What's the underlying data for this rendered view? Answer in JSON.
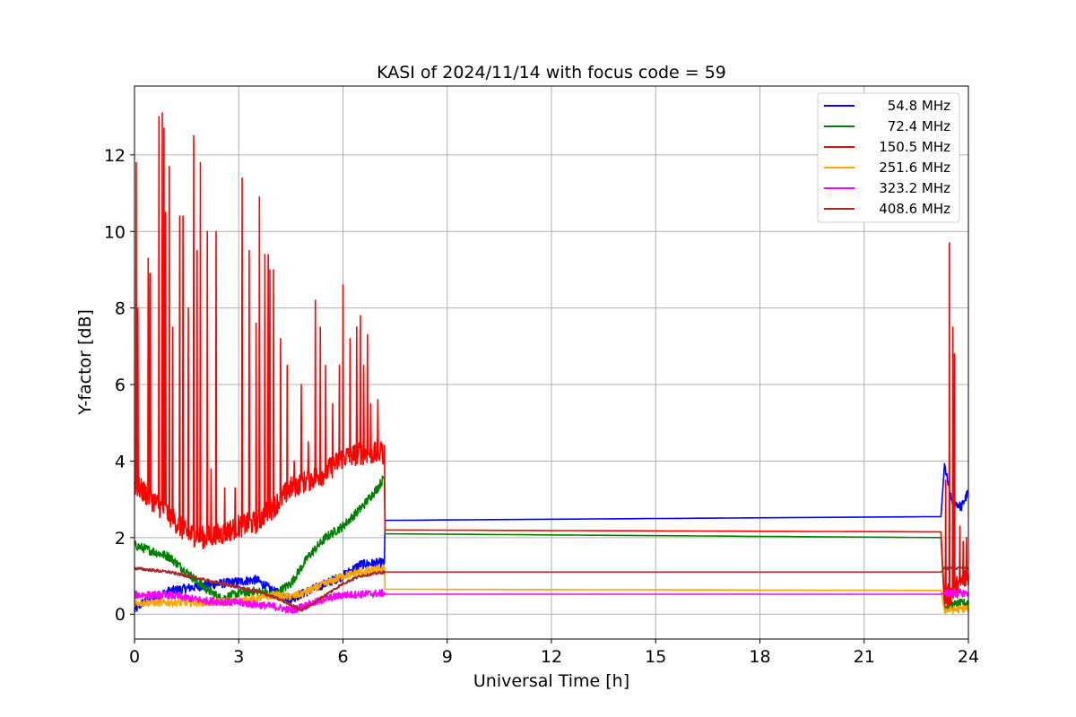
{
  "chart_data": {
    "type": "line",
    "title": "KASI of 2024/11/14 with focus code = 59",
    "xlabel": "Universal Time [h]",
    "ylabel": "Y-factor [dB]",
    "xlim": [
      0,
      24
    ],
    "ylim": [
      -0.65,
      13.8
    ],
    "xticks": [
      0,
      3,
      6,
      9,
      12,
      15,
      18,
      21,
      24
    ],
    "yticks": [
      0,
      2,
      4,
      6,
      8,
      10,
      12
    ],
    "grid": true,
    "legend_position": "top-right",
    "series": [
      {
        "name": "54.8 MHz",
        "color": "#0000ff",
        "noise": 0.12,
        "points": [
          [
            0,
            0.1
          ],
          [
            0.3,
            0.35
          ],
          [
            1,
            0.6
          ],
          [
            2,
            0.75
          ],
          [
            3,
            0.85
          ],
          [
            3.5,
            0.9
          ],
          [
            4,
            0.6
          ],
          [
            4.5,
            0.4
          ],
          [
            5,
            0.6
          ],
          [
            5.5,
            0.8
          ],
          [
            6,
            1.0
          ],
          [
            6.5,
            1.3
          ],
          [
            7.2,
            1.35
          ],
          [
            7.21,
            2.45
          ],
          [
            23.3,
            2.55
          ],
          [
            23.31,
            3.9
          ],
          [
            23.5,
            3.0
          ],
          [
            23.8,
            2.8
          ],
          [
            24,
            3.2
          ]
        ]
      },
      {
        "name": "72.4 MHz",
        "color": "#008000",
        "noise": 0.12,
        "points": [
          [
            0,
            1.8
          ],
          [
            1,
            1.5
          ],
          [
            1.5,
            1.1
          ],
          [
            2,
            0.7
          ],
          [
            2.5,
            0.4
          ],
          [
            3,
            0.55
          ],
          [
            3.5,
            0.6
          ],
          [
            4,
            0.5
          ],
          [
            4.5,
            0.8
          ],
          [
            5,
            1.5
          ],
          [
            5.5,
            2.0
          ],
          [
            6,
            2.3
          ],
          [
            6.5,
            2.75
          ],
          [
            7,
            3.3
          ],
          [
            7.2,
            3.6
          ],
          [
            7.21,
            2.1
          ],
          [
            23.3,
            2.0
          ],
          [
            23.31,
            0.2
          ],
          [
            24,
            0.3
          ]
        ]
      },
      {
        "name": "150.5 MHz",
        "color": "#ff0000",
        "noise": 0.3,
        "points": [
          [
            0,
            3.4
          ],
          [
            0.5,
            3.0
          ],
          [
            1,
            2.6
          ],
          [
            1.5,
            2.1
          ],
          [
            2,
            2.0
          ],
          [
            2.5,
            2.1
          ],
          [
            3,
            2.3
          ],
          [
            3.5,
            2.4
          ],
          [
            4,
            2.8
          ],
          [
            4.5,
            3.3
          ],
          [
            5,
            3.5
          ],
          [
            5.5,
            3.7
          ],
          [
            6,
            4.1
          ],
          [
            6.5,
            4.2
          ],
          [
            7.2,
            4.2
          ],
          [
            7.21,
            2.2
          ],
          [
            23.3,
            2.15
          ],
          [
            23.31,
            0.4
          ],
          [
            24,
            1.0
          ]
        ],
        "spikes": [
          [
            0.05,
            11.8
          ],
          [
            0.1,
            8.0
          ],
          [
            0.4,
            9.3
          ],
          [
            0.45,
            8.9
          ],
          [
            0.7,
            13.0
          ],
          [
            0.8,
            13.1
          ],
          [
            0.85,
            12.7
          ],
          [
            0.9,
            10.5
          ],
          [
            1,
            11.7
          ],
          [
            1.1,
            7.5
          ],
          [
            1.3,
            10.4
          ],
          [
            1.4,
            10.4
          ],
          [
            1.55,
            8.0
          ],
          [
            1.7,
            12.5
          ],
          [
            1.8,
            9.5
          ],
          [
            1.9,
            11.8
          ],
          [
            2.1,
            10.0
          ],
          [
            2.2,
            3.8
          ],
          [
            2.35,
            10.0
          ],
          [
            2.6,
            3.3
          ],
          [
            2.9,
            3.3
          ],
          [
            3.1,
            11.4
          ],
          [
            3.3,
            9.5
          ],
          [
            3.5,
            7.6
          ],
          [
            3.6,
            10.9
          ],
          [
            3.75,
            9.4
          ],
          [
            3.85,
            9.4
          ],
          [
            3.9,
            9.0
          ],
          [
            4,
            9.0
          ],
          [
            4.2,
            7.2
          ],
          [
            4.4,
            6.5
          ],
          [
            4.6,
            4.0
          ],
          [
            4.8,
            6.0
          ],
          [
            5,
            4.5
          ],
          [
            5.2,
            8.2
          ],
          [
            5.35,
            7.5
          ],
          [
            5.5,
            6.5
          ],
          [
            5.7,
            5.5
          ],
          [
            5.9,
            6.5
          ],
          [
            6,
            8.6
          ],
          [
            6.2,
            7.2
          ],
          [
            6.4,
            7.5
          ],
          [
            6.5,
            7.8
          ],
          [
            6.6,
            6.5
          ],
          [
            6.7,
            7.3
          ],
          [
            6.8,
            5.5
          ],
          [
            7.0,
            5.6
          ],
          [
            7.1,
            4.5
          ],
          [
            23.35,
            3.5
          ],
          [
            23.45,
            9.7
          ],
          [
            23.55,
            7.5
          ],
          [
            23.6,
            6.8
          ],
          [
            23.75,
            2.3
          ],
          [
            23.85,
            1.9
          ],
          [
            23.95,
            2.0
          ]
        ]
      },
      {
        "name": "251.6 MHz",
        "color": "#ffa500",
        "noise": 0.1,
        "points": [
          [
            0,
            0.3
          ],
          [
            1,
            0.3
          ],
          [
            2,
            0.3
          ],
          [
            3,
            0.35
          ],
          [
            3.5,
            0.4
          ],
          [
            4,
            0.5
          ],
          [
            4.5,
            0.45
          ],
          [
            5,
            0.6
          ],
          [
            5.5,
            0.8
          ],
          [
            6,
            1.0
          ],
          [
            6.5,
            1.1
          ],
          [
            7.2,
            1.2
          ],
          [
            7.21,
            0.65
          ],
          [
            23.3,
            0.62
          ],
          [
            23.31,
            0.1
          ],
          [
            24,
            0.15
          ]
        ]
      },
      {
        "name": "323.2 MHz",
        "color": "#ff00ff",
        "noise": 0.1,
        "points": [
          [
            0,
            0.5
          ],
          [
            1,
            0.5
          ],
          [
            2,
            0.35
          ],
          [
            3,
            0.3
          ],
          [
            4,
            0.2
          ],
          [
            4.5,
            0.1
          ],
          [
            5,
            0.25
          ],
          [
            5.5,
            0.4
          ],
          [
            6,
            0.5
          ],
          [
            7.2,
            0.55
          ],
          [
            7.21,
            0.52
          ],
          [
            23.3,
            0.52
          ],
          [
            23.31,
            0.55
          ],
          [
            24,
            0.55
          ]
        ]
      },
      {
        "name": "408.6 MHz",
        "color": "#a52a2a",
        "noise": 0.04,
        "points": [
          [
            0,
            1.2
          ],
          [
            0.5,
            1.15
          ],
          [
            1,
            1.1
          ],
          [
            1.5,
            1.0
          ],
          [
            2,
            0.9
          ],
          [
            2.5,
            0.8
          ],
          [
            3,
            0.7
          ],
          [
            3.5,
            0.6
          ],
          [
            4,
            0.45
          ],
          [
            4.5,
            0.25
          ],
          [
            4.8,
            0.1
          ],
          [
            5,
            0.2
          ],
          [
            5.5,
            0.5
          ],
          [
            6,
            0.8
          ],
          [
            6.5,
            1.0
          ],
          [
            7.2,
            1.1
          ],
          [
            7.21,
            1.1
          ],
          [
            23.3,
            1.1
          ],
          [
            23.31,
            1.2
          ],
          [
            24,
            1.2
          ]
        ]
      }
    ]
  }
}
